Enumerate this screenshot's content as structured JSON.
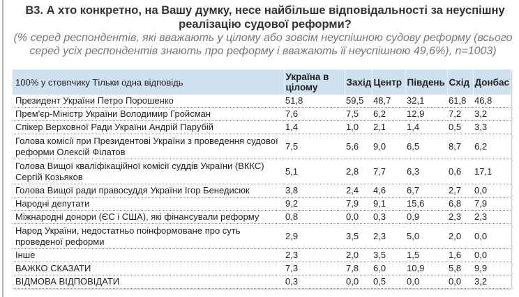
{
  "title": "B3. А хто конкретно, на Вашу думку, несе найбільше відповідальності за неуспішну реалізацію судової реформи?",
  "subtitle": "(% серед респондентів, які вважають у цілому або зовсім неуспішною судову реформу (всього серед усіх респондентів знають про реформу і вважають її неуспішною 49,6%), n=1003)",
  "table": {
    "headers": [
      "100% у стовпчику Тільки одна відповідь",
      "Україна в цілому",
      "Захід",
      "Центр",
      "Південь",
      "Схід",
      "Донбас"
    ],
    "rows": [
      {
        "label": "Президент України Петро Порошенко",
        "values": [
          "51,8",
          "59,5",
          "48,7",
          "32,1",
          "61,8",
          "46,8"
        ]
      },
      {
        "label": "Прем'єр-Міністр України Володимир Гройсман",
        "values": [
          "7,6",
          "7,5",
          "6,2",
          "12,9",
          "7,2",
          "3,2"
        ]
      },
      {
        "label": "Спікер Верховної Ради України Андрій Парубій",
        "values": [
          "1,4",
          "1,0",
          "2,1",
          "1,4",
          "0,5",
          "3,3"
        ]
      },
      {
        "label": "Голова комісії при Президентові України з проведення судової реформи Олексій Філатов",
        "values": [
          "7,5",
          "5,6",
          "9,0",
          "6,5",
          "8,7",
          "6,2"
        ]
      },
      {
        "label": "Голова Вищої кваліфікаційної комісії суддів України (ВККС) Сергій Козьяков",
        "values": [
          "5,1",
          "2,8",
          "7,7",
          "6,3",
          "0,6",
          "17,1"
        ]
      },
      {
        "label": "Голова Вищої ради правосуддя України Ігор Бенедисюк",
        "values": [
          "3,8",
          "2,4",
          "4,6",
          "6,7",
          "2,7",
          "0,0"
        ]
      },
      {
        "label": "Народні депутати",
        "values": [
          "9,2",
          "7,9",
          "9,1",
          "15,6",
          "6,8",
          "7,9"
        ]
      },
      {
        "label": "Міжнародні донори (ЄС і США), які фінансували реформу",
        "values": [
          "0,8",
          "0,0",
          "0,3",
          "0,9",
          "2,3",
          "2,3"
        ]
      },
      {
        "label": "Народ України, недостатньо поінформоване про суть проведеної реформи",
        "values": [
          "2,9",
          "3,5",
          "2,3",
          "5,0",
          "2,0",
          "0,0"
        ]
      },
      {
        "label": "Інше",
        "values": [
          "2,3",
          "2,0",
          "3,5",
          "1,5",
          "1,6",
          "0,0"
        ]
      },
      {
        "label": "ВАЖКО СКАЗАТИ",
        "values": [
          "7,3",
          "7,8",
          "6,0",
          "10,9",
          "5,8",
          "9,9"
        ]
      },
      {
        "label": "ВІДМОВА ВІДПОВІДАТИ",
        "values": [
          "0,3",
          "0,0",
          "0,5",
          "0,0",
          "0,0",
          "3,2"
        ]
      }
    ]
  },
  "colors": {
    "header_bg": "#cfe1f1",
    "title": "#333333",
    "subtitle": "#777777"
  }
}
